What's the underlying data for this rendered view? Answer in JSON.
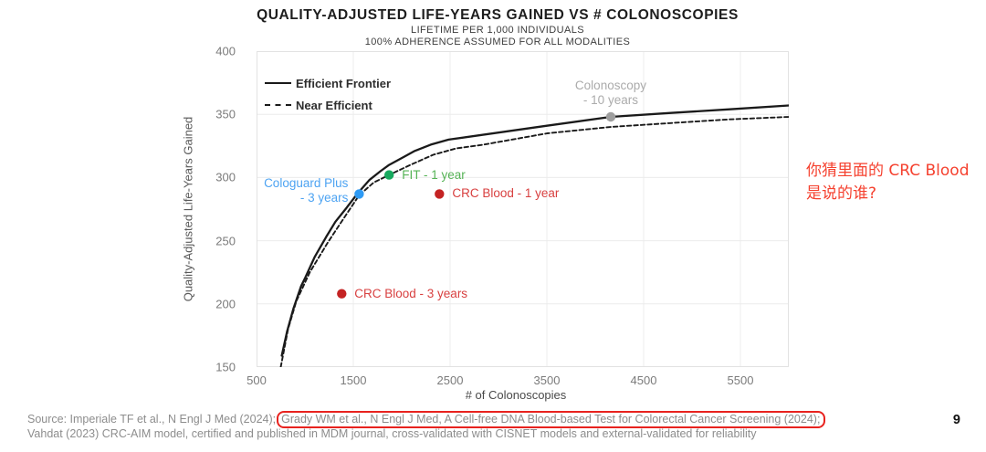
{
  "chart_data": {
    "type": "line",
    "title": "QUALITY-ADJUSTED LIFE-YEARS GAINED VS # COLONOSCOPIES",
    "subtitle1": "LIFETIME PER 1,000 INDIVIDUALS",
    "subtitle2": "100% ADHERENCE ASSUMED FOR ALL MODALITIES",
    "xlabel": "# of Colonoscopies",
    "ylabel": "Quality-Adjusted Life-Years Gained",
    "xlim": [
      500,
      6000
    ],
    "ylim": [
      150,
      400
    ],
    "x_ticks": [
      500,
      1500,
      2500,
      3500,
      4500,
      5500
    ],
    "y_ticks": [
      400,
      350,
      300,
      250,
      200,
      150
    ],
    "grid": true,
    "legend_position": "top-left",
    "line_color": "#1a1a1a",
    "grid_color": "#ececec",
    "border_color": "#e2e2e2",
    "series": [
      {
        "name": "Efficient Frontier",
        "style": "solid",
        "points": [
          [
            760,
            159
          ],
          [
            815,
            178
          ],
          [
            880,
            196
          ],
          [
            960,
            214
          ],
          [
            1005,
            221
          ],
          [
            1100,
            237
          ],
          [
            1220,
            253
          ],
          [
            1315,
            265
          ],
          [
            1430,
            276
          ],
          [
            1540,
            287
          ],
          [
            1665,
            298
          ],
          [
            1780,
            305
          ],
          [
            1870,
            310
          ],
          [
            2015,
            316
          ],
          [
            2135,
            321
          ],
          [
            2300,
            326
          ],
          [
            2485,
            330
          ],
          [
            3500,
            341
          ],
          [
            4160,
            348
          ],
          [
            4760,
            351
          ],
          [
            5390,
            354
          ],
          [
            6000,
            357
          ]
        ]
      },
      {
        "name": "Near Efficient",
        "style": "dashed",
        "points": [
          [
            750,
            150
          ],
          [
            825,
            180
          ],
          [
            910,
            202
          ],
          [
            1050,
            225
          ],
          [
            1240,
            249
          ],
          [
            1430,
            271
          ],
          [
            1560,
            286
          ],
          [
            1710,
            296
          ],
          [
            1870,
            302
          ],
          [
            2090,
            310
          ],
          [
            2325,
            318
          ],
          [
            2560,
            323
          ],
          [
            2845,
            326
          ],
          [
            3505,
            335
          ],
          [
            4160,
            340
          ],
          [
            4760,
            343
          ],
          [
            5390,
            346
          ],
          [
            6000,
            348
          ]
        ]
      }
    ],
    "markers": [
      {
        "id": "colonoscopy-10-years",
        "label_lines": [
          "Colonoscopy",
          "- 10 years"
        ],
        "x": 4160,
        "y": 348,
        "dot_color": "#9e9e9e",
        "label_color": "#ababab",
        "side": "above"
      },
      {
        "id": "cologuard-plus-3-years",
        "label_lines": [
          "Cologuard Plus",
          "- 3 years"
        ],
        "x": 1560,
        "y": 287,
        "dot_color": "#2e9bf5",
        "label_color": "#4da3f2",
        "side": "left"
      },
      {
        "id": "fit-1-year",
        "label_lines": [
          "FIT - 1 year"
        ],
        "x": 1870,
        "y": 302,
        "dot_color": "#17a95e",
        "label_color": "#56b356",
        "side": "right"
      },
      {
        "id": "crc-blood-1-year",
        "label_lines": [
          "CRC Blood - 1 year"
        ],
        "x": 2390,
        "y": 287,
        "dot_color": "#c42323",
        "label_color": "#d84040",
        "side": "right"
      },
      {
        "id": "crc-blood-3-years",
        "label_lines": [
          "CRC Blood - 3 years"
        ],
        "x": 1380,
        "y": 208,
        "dot_color": "#c42323",
        "label_color": "#d84040",
        "side": "right"
      }
    ]
  },
  "annotation": {
    "line1": "你猜里面的 CRC Blood",
    "line2": "是说的谁?",
    "color": "#f5412f"
  },
  "footer": {
    "source_prefix": "Source: Imperiale TF et al., N Engl J Med (2024);",
    "highlighted": "Grady WM et al., N Engl J Med, A Cell-free DNA Blood-based Test for Colorectal Cancer Screening (2024);",
    "line2": "Vahdat (2023) CRC-AIM model, certified and published in MDM journal, cross-validated with CISNET models and external-validated for reliability",
    "highlight_color": "#e8221e",
    "page_number": "9"
  }
}
